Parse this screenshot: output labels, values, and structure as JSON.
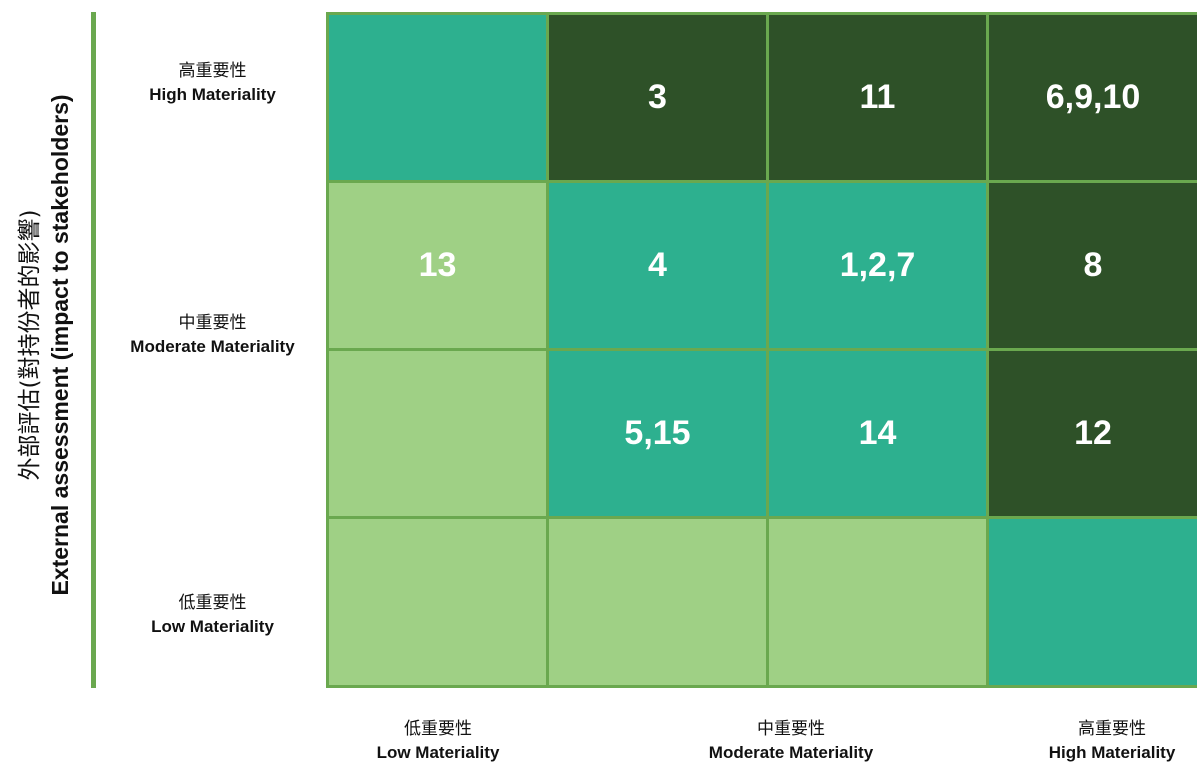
{
  "y_axis": {
    "title_zh": "外部評估(對持份者的影響)",
    "title_en": "External assessment (impact to stakeholders)"
  },
  "row_labels": [
    {
      "zh": "高重要性",
      "en": "High Materiality"
    },
    {
      "zh": "中重要性",
      "en": "Moderate Materiality"
    },
    {
      "zh": "低重要性",
      "en": "Low Materiality"
    }
  ],
  "column_labels": [
    {
      "zh": "低重要性",
      "en": "Low Materiality"
    },
    {
      "zh": "中重要性",
      "en": "Moderate Materiality"
    },
    {
      "zh": "高重要性",
      "en": "High Materiality"
    }
  ],
  "colors": {
    "light": "#9fd085",
    "teal": "#2db08f",
    "dark": "#2e5128",
    "grid_line": "#6aa84f"
  },
  "matrix": [
    [
      {
        "label": "",
        "tone": "teal"
      },
      {
        "label": "3",
        "tone": "dark"
      },
      {
        "label": "11",
        "tone": "dark"
      },
      {
        "label": "6,9,10",
        "tone": "dark"
      }
    ],
    [
      {
        "label": "13",
        "tone": "light"
      },
      {
        "label": "4",
        "tone": "teal"
      },
      {
        "label": "1,2,7",
        "tone": "teal"
      },
      {
        "label": "8",
        "tone": "dark"
      }
    ],
    [
      {
        "label": "",
        "tone": "light"
      },
      {
        "label": "5,15",
        "tone": "teal"
      },
      {
        "label": "14",
        "tone": "teal"
      },
      {
        "label": "12",
        "tone": "dark"
      }
    ],
    [
      {
        "label": "",
        "tone": "light"
      },
      {
        "label": "",
        "tone": "light"
      },
      {
        "label": "",
        "tone": "light"
      },
      {
        "label": "",
        "tone": "teal"
      }
    ]
  ]
}
